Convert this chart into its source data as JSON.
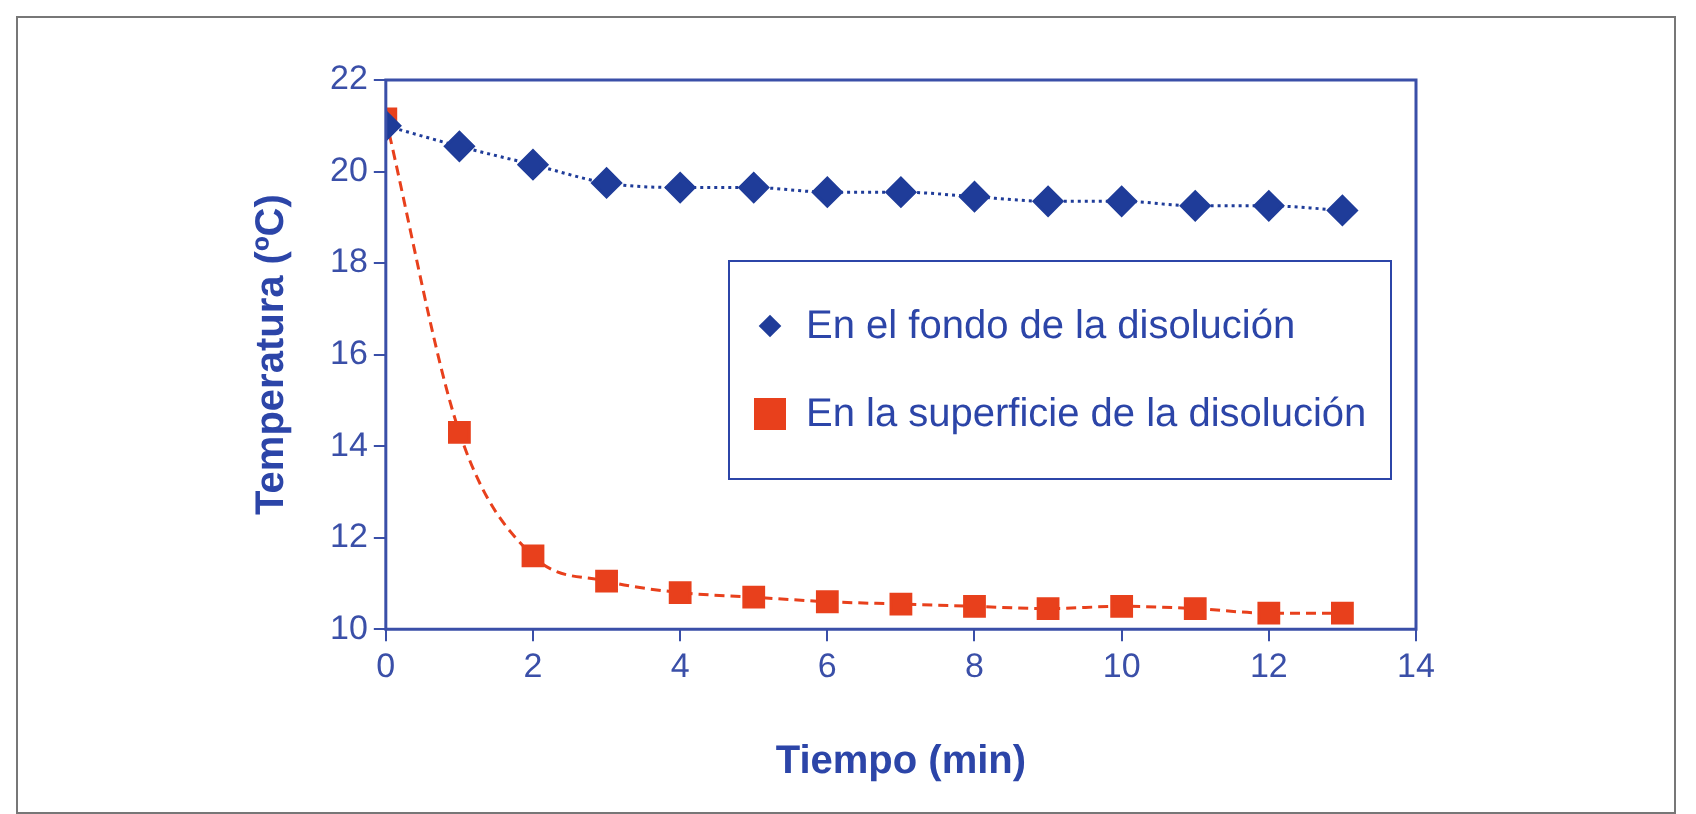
{
  "chart_data": {
    "type": "line",
    "xlabel": "Tiempo (min)",
    "ylabel": "Temperatura (ºC)",
    "x": [
      0,
      1,
      2,
      3,
      4,
      5,
      6,
      7,
      8,
      9,
      10,
      11,
      12,
      13
    ],
    "series": [
      {
        "name": "En el fondo de la disolución",
        "color": "#1f3c99",
        "marker": "diamond",
        "line_style": "dotted",
        "values": [
          21.0,
          20.55,
          20.15,
          19.75,
          19.65,
          19.65,
          19.55,
          19.55,
          19.45,
          19.35,
          19.35,
          19.25,
          19.25,
          19.15
        ]
      },
      {
        "name": "En la superficie de la disolución",
        "color": "#e8401c",
        "marker": "square",
        "line_style": "dashed",
        "values": [
          21.15,
          14.3,
          11.6,
          11.05,
          10.8,
          10.7,
          10.6,
          10.55,
          10.5,
          10.45,
          10.5,
          10.45,
          10.35,
          10.35
        ]
      }
    ],
    "xlim": [
      0,
      14
    ],
    "xticks": [
      0,
      2,
      4,
      6,
      8,
      10,
      12,
      14
    ],
    "ylim": [
      10,
      22
    ],
    "yticks": [
      10,
      12,
      14,
      16,
      18,
      20,
      22
    ],
    "grid": false,
    "legend": "right"
  }
}
